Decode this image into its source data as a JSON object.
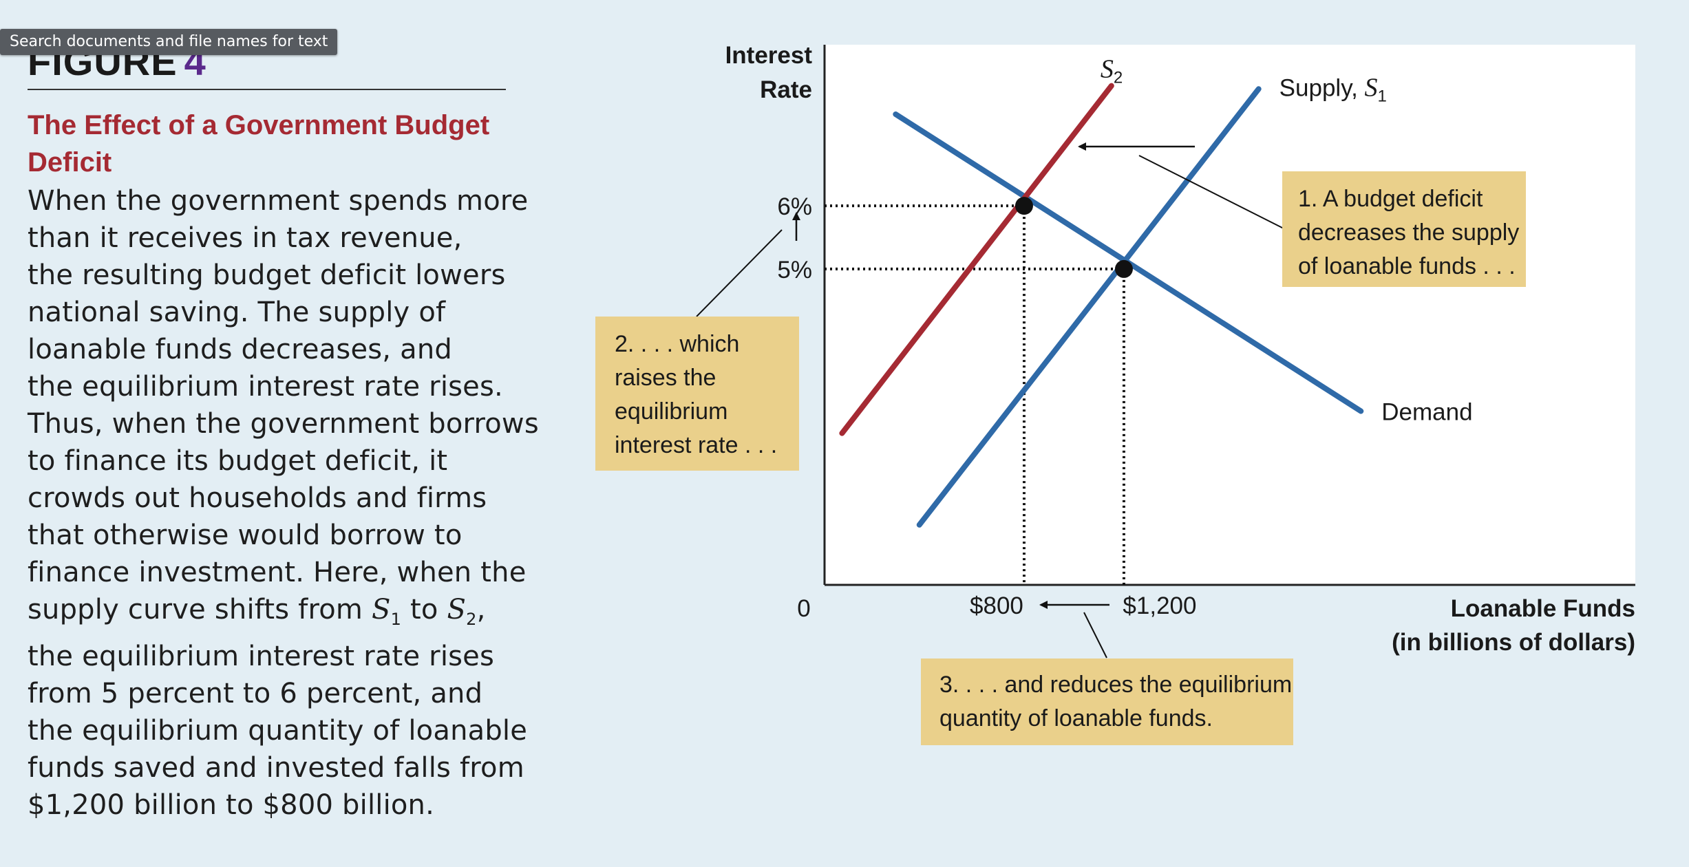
{
  "tooltip": "Search documents and file names for text",
  "figure": {
    "label": "FIGURE",
    "number": "4",
    "title_lines": [
      "The Effect of a Government Budget",
      "Deficit"
    ],
    "description_lines": [
      "When the government spends more",
      "than it receives in tax revenue,",
      "the resulting budget deficit lowers",
      "national saving. The supply of",
      "loanable funds decreases, and",
      "the equilibrium interest rate rises.",
      "Thus, when the government borrows",
      "to finance its budget deficit, it",
      "crowds out households and firms",
      "that otherwise would borrow to",
      "finance investment. Here, when the",
      "supply curve shifts from S1 to S2,",
      "the equilibrium interest rate rises",
      "from 5 percent to 6 percent, and",
      "the equilibrium quantity of loanable",
      "funds saved and invested falls from",
      "$1,200 billion to $800 billion."
    ]
  },
  "colors": {
    "blue": "#2f6aa8",
    "red": "#a52a33",
    "annotation_bg": "#ead08b",
    "title": "#a52a33",
    "figure_number": "#5b2a8c"
  },
  "chart_data": {
    "type": "line",
    "ylabel_lines": [
      "Interest",
      "Rate"
    ],
    "xlabel_lines": [
      "Loanable Funds",
      "(in billions of dollars)"
    ],
    "origin_label": "0",
    "x_ticks": [
      {
        "value": 800,
        "label": "$800"
      },
      {
        "value": 1200,
        "label": "$1,200"
      }
    ],
    "y_ticks": [
      {
        "value": 6,
        "label": "6%"
      },
      {
        "value": 5,
        "label": "5%"
      }
    ],
    "xlim": [
      0,
      3250
    ],
    "ylim": [
      0,
      8.55
    ],
    "series": [
      {
        "name": "Demand",
        "label": "Demand",
        "color": "#2f6aa8",
        "points": [
          [
            285,
            7.45
          ],
          [
            2150,
            2.75
          ]
        ]
      },
      {
        "name": "Supply, S1",
        "label_main": "Supply, ",
        "label_var": "S",
        "label_sub": "1",
        "color": "#2f6aa8",
        "points": [
          [
            380,
            0.95
          ],
          [
            1740,
            7.85
          ]
        ]
      },
      {
        "name": "S2",
        "label_main": "",
        "label_var": "S",
        "label_sub": "2",
        "color": "#a52a33",
        "points": [
          [
            70,
            2.4
          ],
          [
            1150,
            7.9
          ]
        ]
      }
    ],
    "equilibria": [
      {
        "x": 800,
        "y": 6
      },
      {
        "x": 1200,
        "y": 5
      }
    ],
    "annotations": [
      {
        "id": "ann1",
        "lines": [
          "1. A budget deficit",
          "decreases the supply",
          "of loanable funds . . ."
        ]
      },
      {
        "id": "ann2",
        "lines": [
          "2. . . . which",
          "raises the",
          "equilibrium",
          "interest rate . . ."
        ]
      },
      {
        "id": "ann3",
        "lines": [
          "3. . . . and reduces the equilibrium",
          "quantity of loanable funds."
        ]
      }
    ]
  }
}
